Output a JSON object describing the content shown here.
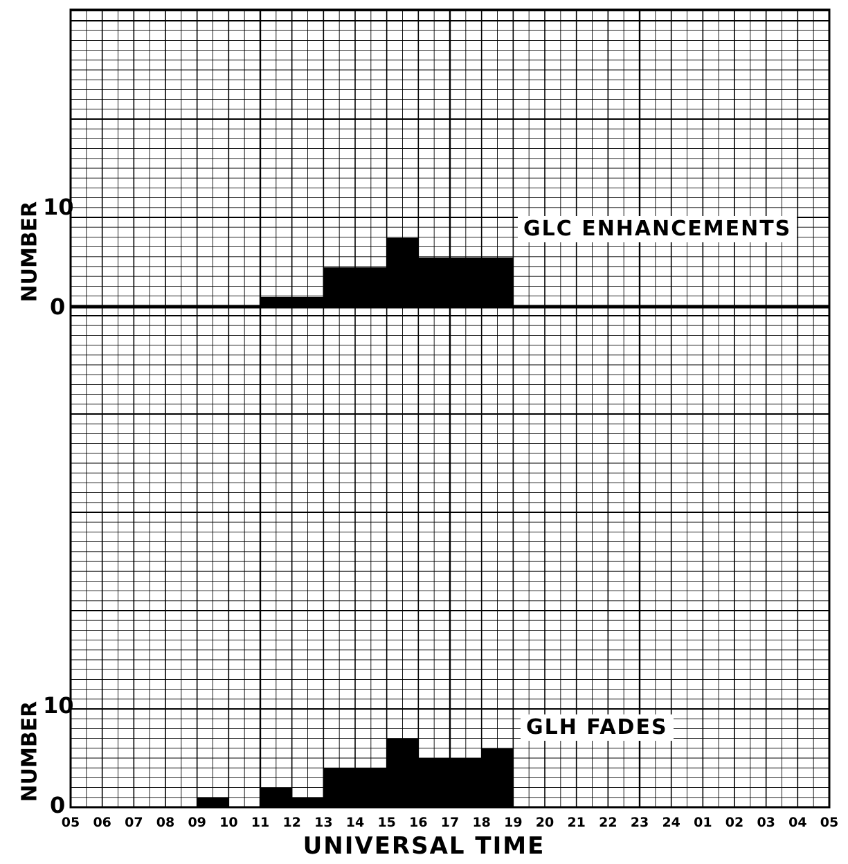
{
  "chart_data": [
    {
      "type": "bar",
      "title": "GLC ENHANCEMENTS",
      "ylabel": "NUMBER",
      "xlabel": "UNIVERSAL TIME",
      "y_ticks": [
        "0",
        "10"
      ],
      "ylim": [
        0,
        10
      ],
      "categories": [
        "05",
        "06",
        "07",
        "08",
        "09",
        "10",
        "11",
        "12",
        "13",
        "14",
        "15",
        "16",
        "17",
        "18",
        "19",
        "20",
        "21",
        "22",
        "23",
        "24",
        "01",
        "02",
        "03",
        "04"
      ],
      "values": [
        0,
        0,
        0,
        0,
        0,
        0,
        1,
        1,
        4,
        4,
        7,
        5,
        5,
        5,
        0,
        0,
        0,
        0,
        0,
        0,
        0,
        0,
        0,
        0
      ],
      "grid": true
    },
    {
      "type": "bar",
      "title": "GLH FADES",
      "ylabel": "NUMBER",
      "xlabel": "UNIVERSAL TIME",
      "y_ticks": [
        "0",
        "10"
      ],
      "ylim": [
        0,
        10
      ],
      "categories": [
        "05",
        "06",
        "07",
        "08",
        "09",
        "10",
        "11",
        "12",
        "13",
        "14",
        "15",
        "16",
        "17",
        "18",
        "19",
        "20",
        "21",
        "22",
        "23",
        "24",
        "01",
        "02",
        "03",
        "04"
      ],
      "values": [
        0,
        0,
        0,
        0,
        1,
        0,
        2,
        1,
        4,
        4,
        7,
        5,
        5,
        6,
        0,
        0,
        0,
        0,
        0,
        0,
        0,
        0,
        0,
        0
      ],
      "grid": true
    }
  ],
  "x_tick_labels": [
    "05",
    "06",
    "07",
    "08",
    "09",
    "10",
    "11",
    "12",
    "13",
    "14",
    "15",
    "16",
    "17",
    "18",
    "19",
    "20",
    "21",
    "22",
    "23",
    "24",
    "01",
    "02",
    "03",
    "04",
    "05"
  ],
  "xlabel": "UNIVERSAL TIME",
  "colors": {
    "ink": "#000000",
    "paper": "#ffffff"
  }
}
